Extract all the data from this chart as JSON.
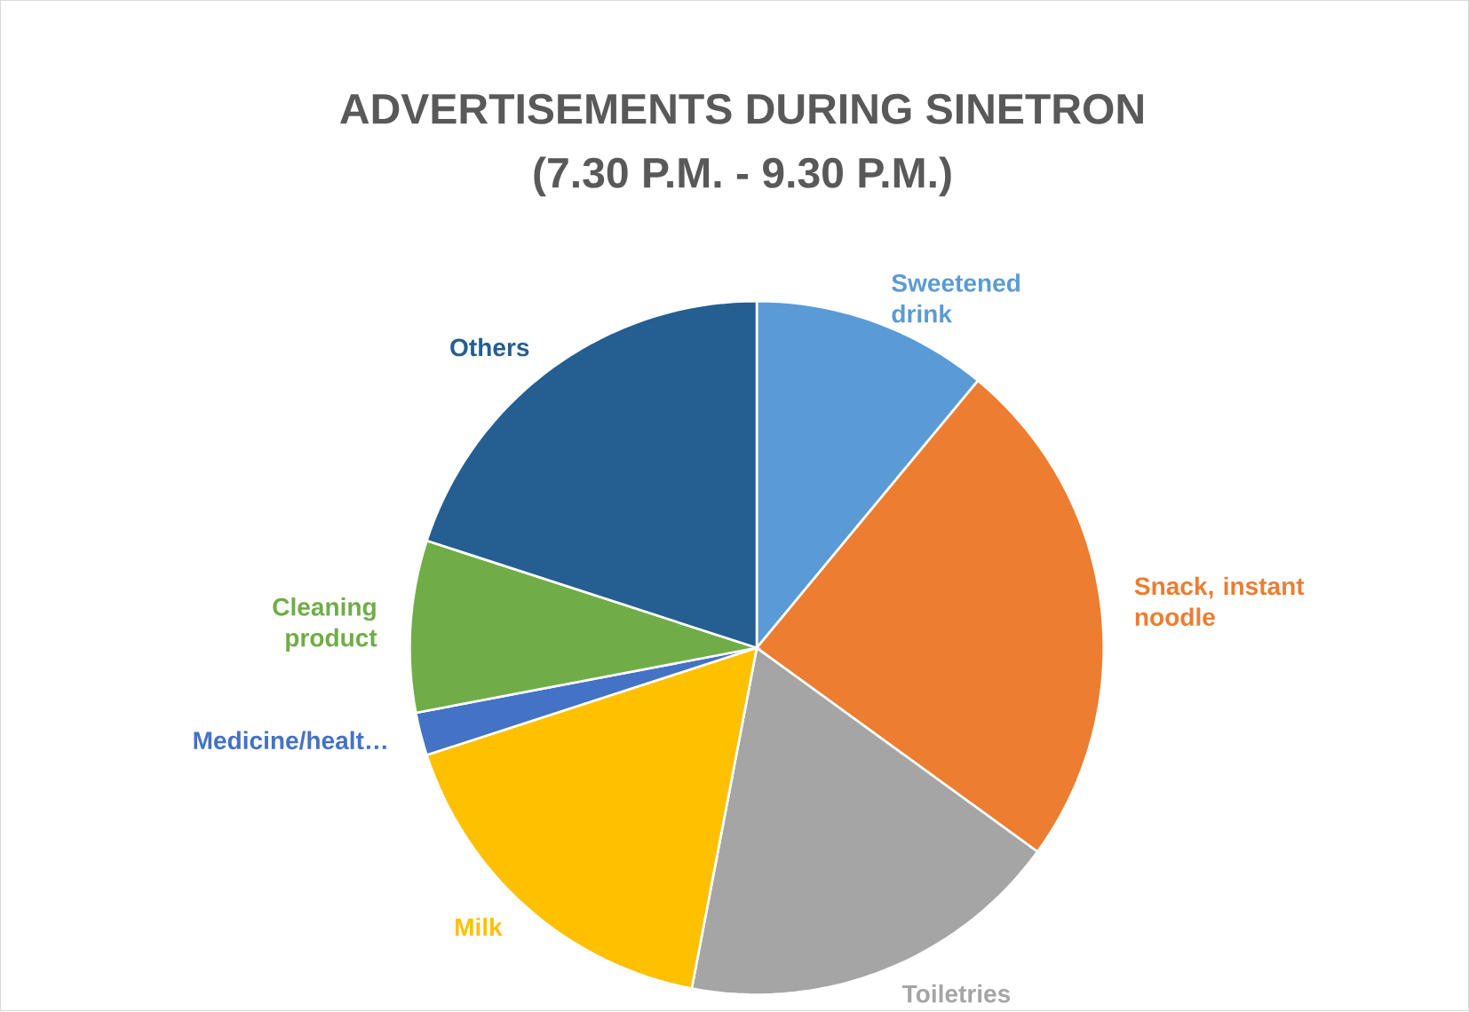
{
  "chart_data": {
    "type": "pie",
    "title": "ADVERTISEMENTS DURING SINETRON",
    "subtitle": "(7.30 P.M. - 9.30 P.M.)",
    "categories": [
      "Sweetened drink",
      "Snack, instant noodle",
      "Toiletries",
      "Milk",
      "Medicine/healt…",
      "Cleaning product",
      "Others"
    ],
    "values": [
      11,
      24,
      18,
      17,
      2,
      8,
      20
    ],
    "colors": [
      "#5b9bd5",
      "#ed7d31",
      "#a5a5a5",
      "#ffc000",
      "#4472c4",
      "#70ad47",
      "#255e91"
    ]
  }
}
